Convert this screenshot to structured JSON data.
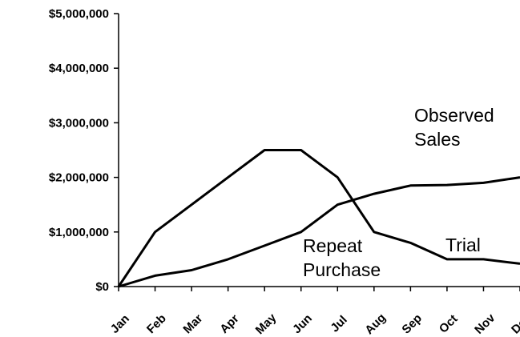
{
  "chart_data": {
    "type": "line",
    "title": "",
    "xlabel": "",
    "ylabel": "",
    "categories": [
      "Jan",
      "Feb",
      "Mar",
      "Apr",
      "May",
      "Jun",
      "Jul",
      "Aug",
      "Sep",
      "Oct",
      "Nov",
      "Dec"
    ],
    "ylim": [
      0,
      5000000
    ],
    "y_ticks": [
      0,
      1000000,
      2000000,
      3000000,
      4000000,
      5000000
    ],
    "y_tick_labels": [
      "$0",
      "$1,000,000",
      "$2,000,000",
      "$3,000,000",
      "$4,000,000",
      "$5,000,000"
    ],
    "grid": false,
    "legend": "none",
    "series": [
      {
        "values": [
          0,
          1000000,
          1500000,
          2000000,
          2500000,
          2500000,
          2000000,
          1000000,
          800000,
          500000,
          500000,
          420000
        ]
      },
      {
        "values": [
          0,
          200000,
          300000,
          500000,
          750000,
          1000000,
          1500000,
          1700000,
          1850000,
          1860000,
          1900000,
          2000000
        ]
      }
    ],
    "annotations": [
      {
        "lines": [
          "Observed",
          "Sales"
        ],
        "anchor_value": [
          8.8,
          3000000
        ]
      },
      {
        "lines": [
          "Repeat",
          "Purchase"
        ],
        "anchor_value": [
          5.0,
          700000
        ]
      },
      {
        "lines": [
          "Trial"
        ],
        "anchor_value": [
          8.8,
          700000
        ]
      }
    ],
    "line_color": "#000000"
  }
}
